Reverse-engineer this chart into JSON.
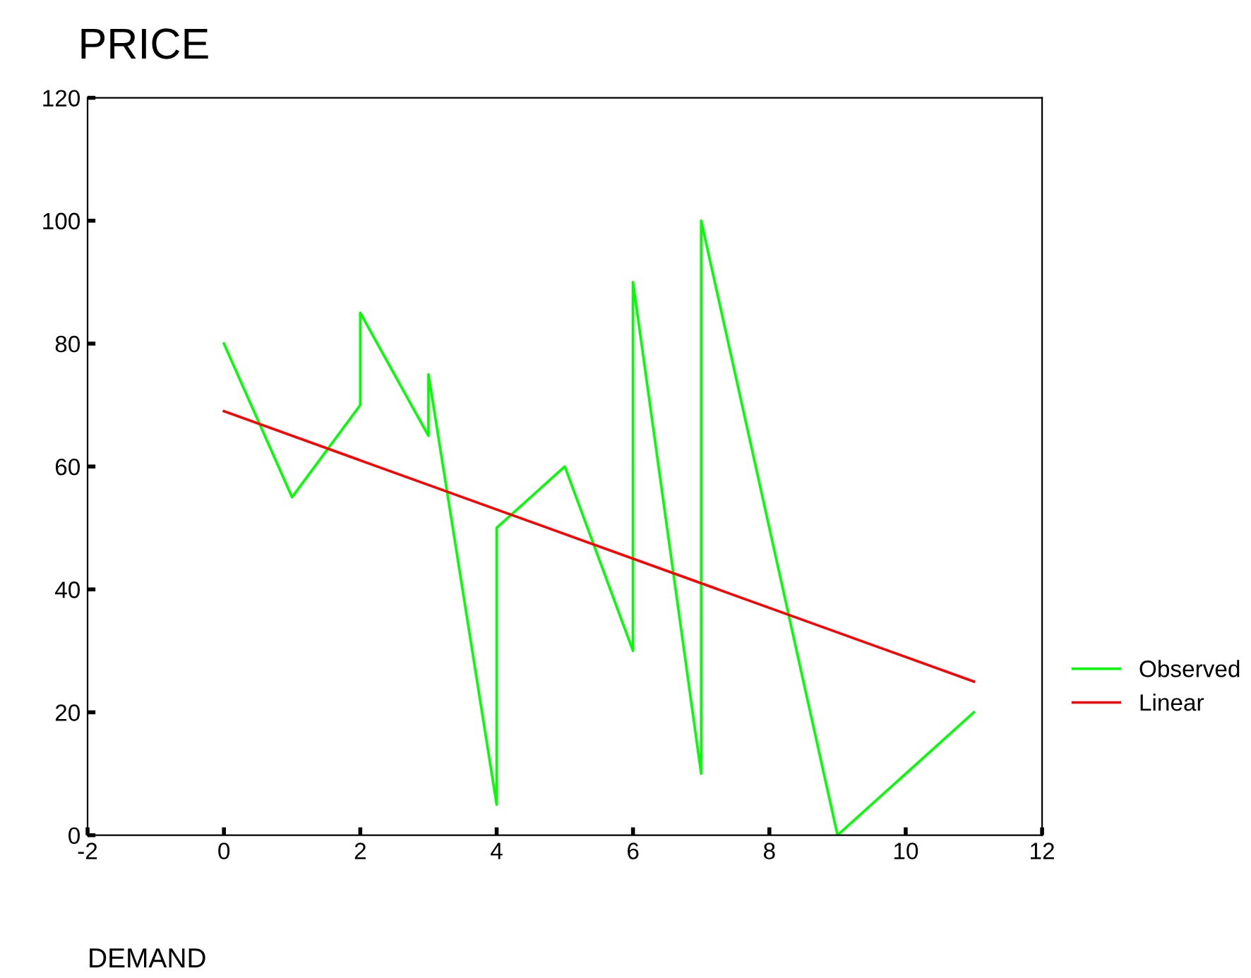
{
  "chart_data": {
    "type": "line",
    "ylabel": "PRICE",
    "xlabel": "DEMAND",
    "series": [
      {
        "name": "Observed",
        "color": "#00ff00",
        "x": [
          0,
          1,
          2,
          2,
          3,
          3,
          4,
          4,
          5,
          6,
          6,
          7,
          7,
          9,
          11
        ],
        "values": [
          80,
          55,
          70,
          85,
          65,
          75,
          5,
          50,
          60,
          30,
          90,
          10,
          100,
          0,
          20
        ]
      },
      {
        "name": "Linear",
        "color": "#ff0000",
        "x": [
          0,
          11
        ],
        "values": [
          69,
          25
        ]
      }
    ],
    "xlim": [
      -2,
      12
    ],
    "xticks": [
      -2,
      0,
      2,
      4,
      6,
      8,
      10,
      12
    ],
    "ylim": [
      0,
      120
    ],
    "yticks": [
      0,
      20,
      40,
      60,
      80,
      100,
      120
    ],
    "legend": "right",
    "grid": false
  }
}
